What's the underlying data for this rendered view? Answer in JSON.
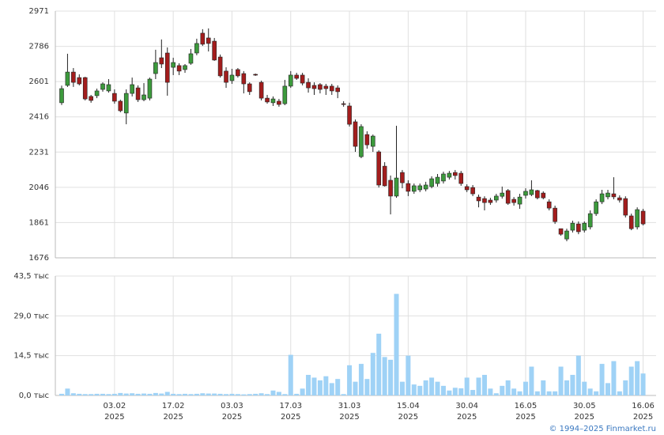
{
  "chart_data": [
    {
      "type": "candlestick",
      "ylim": [
        1676,
        2971
      ],
      "yticks": [
        2971,
        2786,
        2601,
        2416,
        2231,
        2046,
        1861,
        1676
      ],
      "grid": true,
      "up_color": "#3c9a3c",
      "down_color": "#a31d1d",
      "series": {
        "open": [
          2490,
          2581,
          2651,
          2622,
          2622,
          2523,
          2527,
          2560,
          2552,
          2539,
          2498,
          2436,
          2539,
          2568,
          2506,
          2514,
          2643,
          2726,
          2751,
          2676,
          2685,
          2664,
          2697,
          2751,
          2855,
          2830,
          2813,
          2730,
          2656,
          2606,
          2664,
          2643,
          2589,
          2639,
          2597,
          2514,
          2490,
          2498,
          2485,
          2577,
          2635,
          2635,
          2597,
          2581,
          2585,
          2577,
          2577,
          2568,
          2485,
          2473,
          2390,
          2207,
          2323,
          2261,
          2232,
          2157,
          2083,
          2000,
          2124,
          2066,
          2025,
          2033,
          2037,
          2050,
          2066,
          2079,
          2099,
          2124,
          2120,
          2050,
          2045,
          1995,
          1987,
          1979,
          1979,
          1999,
          2029,
          1983,
          1958,
          2004,
          2008,
          2029,
          2016,
          1970,
          1937,
          1829,
          1775,
          1821,
          1854,
          1821,
          1838,
          1908,
          1970,
          1996,
          2012,
          1991,
          1987,
          1896,
          1838,
          1921
        ],
        "high": [
          2580,
          2747,
          2672,
          2639,
          2626,
          2531,
          2564,
          2597,
          2614,
          2560,
          2506,
          2560,
          2622,
          2581,
          2593,
          2622,
          2768,
          2822,
          2780,
          2726,
          2697,
          2693,
          2772,
          2826,
          2876,
          2880,
          2830,
          2743,
          2676,
          2668,
          2672,
          2656,
          2597,
          2643,
          2606,
          2531,
          2523,
          2510,
          2610,
          2656,
          2647,
          2647,
          2618,
          2597,
          2593,
          2589,
          2589,
          2581,
          2498,
          2490,
          2402,
          2377,
          2340,
          2323,
          2240,
          2178,
          2108,
          2369,
          2137,
          2083,
          2066,
          2066,
          2075,
          2104,
          2116,
          2128,
          2132,
          2137,
          2132,
          2062,
          2058,
          2008,
          1999,
          1991,
          2012,
          2050,
          2037,
          1995,
          2012,
          2041,
          2083,
          2033,
          2025,
          1983,
          1950,
          1829,
          1829,
          1871,
          1867,
          1867,
          1925,
          1983,
          2033,
          2033,
          2099,
          2004,
          1999,
          1908,
          1941,
          1933
        ],
        "low": [
          2478,
          2573,
          2573,
          2581,
          2502,
          2490,
          2514,
          2548,
          2543,
          2485,
          2440,
          2377,
          2523,
          2494,
          2498,
          2502,
          2614,
          2672,
          2527,
          2635,
          2635,
          2647,
          2689,
          2739,
          2788,
          2759,
          2710,
          2622,
          2568,
          2589,
          2622,
          2539,
          2531,
          2631,
          2502,
          2485,
          2473,
          2469,
          2477,
          2568,
          2610,
          2581,
          2543,
          2531,
          2539,
          2531,
          2531,
          2514,
          2469,
          2365,
          2232,
          2199,
          2249,
          2232,
          2045,
          2050,
          1904,
          1991,
          2041,
          2000,
          2012,
          2021,
          2025,
          2041,
          2050,
          2066,
          2087,
          2087,
          2054,
          2021,
          2000,
          1941,
          1925,
          1954,
          1966,
          1987,
          1954,
          1950,
          1933,
          1987,
          2000,
          1983,
          1983,
          1925,
          1854,
          1792,
          1763,
          1809,
          1800,
          1809,
          1825,
          1896,
          1958,
          1983,
          1983,
          1966,
          1888,
          1821,
          1825,
          1846
        ],
        "close": [
          2564,
          2651,
          2597,
          2589,
          2510,
          2502,
          2552,
          2589,
          2585,
          2498,
          2448,
          2539,
          2585,
          2506,
          2531,
          2614,
          2701,
          2693,
          2597,
          2701,
          2656,
          2685,
          2747,
          2801,
          2797,
          2801,
          2714,
          2631,
          2597,
          2635,
          2631,
          2589,
          2548,
          2635,
          2514,
          2494,
          2510,
          2481,
          2577,
          2635,
          2618,
          2593,
          2568,
          2564,
          2560,
          2564,
          2552,
          2548,
          2481,
          2377,
          2261,
          2365,
          2269,
          2315,
          2058,
          2054,
          2000,
          2095,
          2070,
          2025,
          2054,
          2054,
          2058,
          2091,
          2099,
          2116,
          2120,
          2108,
          2066,
          2033,
          2012,
          1975,
          1966,
          1966,
          2000,
          2016,
          1962,
          1966,
          1995,
          2025,
          2033,
          1991,
          1991,
          1937,
          1866,
          1800,
          1817,
          1858,
          1813,
          1858,
          1908,
          1970,
          2012,
          2016,
          1996,
          1979,
          1900,
          1829,
          1929,
          1854
        ]
      }
    },
    {
      "type": "bar",
      "ylim": [
        0,
        43.5
      ],
      "yticks": [
        {
          "value": 43.5,
          "label": "43,5 тыс"
        },
        {
          "value": 29,
          "label": "29,0 тыс"
        },
        {
          "value": 14.5,
          "label": "14,5 тыс"
        },
        {
          "value": 0,
          "label": "0,0 тыс"
        }
      ],
      "grid": true,
      "color": "#9fd2f6",
      "xticks": [
        {
          "value": 9,
          "label": [
            "03.02",
            "2025"
          ]
        },
        {
          "value": 19,
          "label": [
            "17.02",
            "2025"
          ]
        },
        {
          "value": 29,
          "label": [
            "03.03",
            "2025"
          ]
        },
        {
          "value": 39,
          "label": [
            "17.03",
            "2025"
          ]
        },
        {
          "value": 49,
          "label": [
            "31.03",
            "2025"
          ]
        },
        {
          "value": 59,
          "label": [
            "15.04",
            "2025"
          ]
        },
        {
          "value": 69,
          "label": [
            "30.04",
            "2025"
          ]
        },
        {
          "value": 79,
          "label": [
            "16.05",
            "2025"
          ]
        },
        {
          "value": 89,
          "label": [
            "30.05",
            "2025"
          ]
        },
        {
          "value": 99,
          "label": [
            "16.06",
            "2025"
          ]
        }
      ],
      "values": [
        0.6,
        2.5,
        0.8,
        0.6,
        0.5,
        0.5,
        0.6,
        0.6,
        0.5,
        0.6,
        0.9,
        0.7,
        0.8,
        0.6,
        0.7,
        0.6,
        0.9,
        0.7,
        1.3,
        0.6,
        0.5,
        0.6,
        0.5,
        0.6,
        0.8,
        0.7,
        0.7,
        0.6,
        0.5,
        0.6,
        0.5,
        0.4,
        0.5,
        0.6,
        0.8,
        0.5,
        1.8,
        1.3,
        0.5,
        14.8,
        0.6,
        2.5,
        7.5,
        6.5,
        5.5,
        7,
        4.5,
        6,
        0.5,
        11,
        5,
        11.5,
        6,
        15.5,
        22.5,
        14,
        13,
        37,
        5,
        14.5,
        4,
        3.5,
        5.5,
        6.5,
        5,
        3.5,
        1.8,
        2.8,
        2.6,
        6.5,
        2,
        6.5,
        7.5,
        2.5,
        0.8,
        3.5,
        5.5,
        2.5,
        1.5,
        5,
        10.5,
        1.5,
        5.5,
        1.5,
        1.5,
        10.5,
        5.5,
        7.5,
        14.5,
        5,
        2.5,
        1.5,
        11.5,
        4.5,
        12.5,
        1.5,
        5.5,
        10.5,
        12.5,
        8
      ]
    }
  ],
  "footer": "© 1994–2025 Finmarket.ru"
}
